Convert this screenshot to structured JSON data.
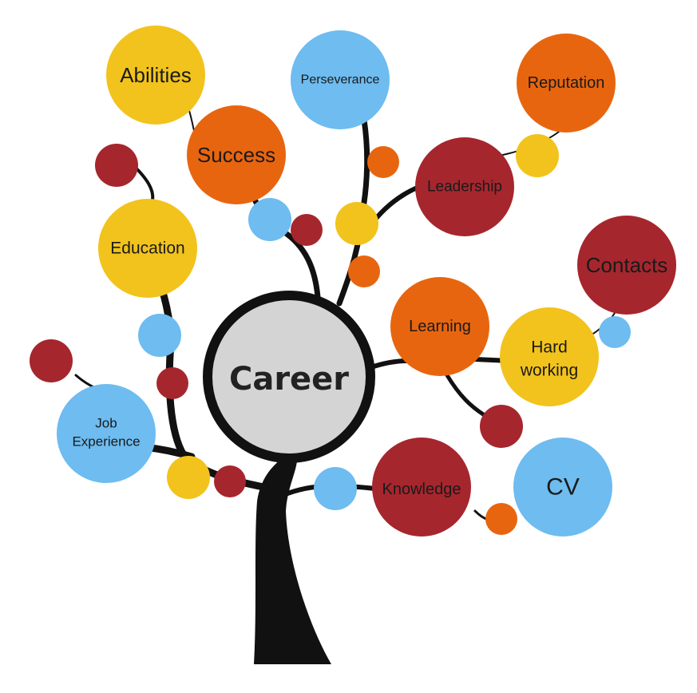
{
  "colors": {
    "yellow": "#f2c31c",
    "orange": "#e8650f",
    "red": "#a6262e",
    "blue": "#6ebcf0",
    "center": "#d4d4d4",
    "trunk": "#111111"
  },
  "center": {
    "label": "Career"
  },
  "nodes": [
    {
      "id": "abilities",
      "label": "Abilities",
      "color": "yellow"
    },
    {
      "id": "success",
      "label": "Success",
      "color": "orange"
    },
    {
      "id": "perseverance",
      "label": "Perseverance",
      "color": "blue"
    },
    {
      "id": "reputation",
      "label": "Reputation",
      "color": "orange"
    },
    {
      "id": "leadership",
      "label": "Leadership",
      "color": "red"
    },
    {
      "id": "education",
      "label": "Education",
      "color": "yellow"
    },
    {
      "id": "contacts",
      "label": "Contacts",
      "color": "red"
    },
    {
      "id": "learning",
      "label": "Learning",
      "color": "orange"
    },
    {
      "id": "hard-working",
      "label": "Hard working",
      "lines": [
        "Hard",
        "working"
      ],
      "color": "yellow"
    },
    {
      "id": "job-experience",
      "label": "Job Experience",
      "lines": [
        "Job",
        "Experience"
      ],
      "color": "blue"
    },
    {
      "id": "knowledge",
      "label": "Knowledge",
      "color": "red"
    },
    {
      "id": "cv",
      "label": "CV",
      "color": "blue"
    }
  ],
  "dots": [
    {
      "color": "red"
    },
    {
      "color": "blue"
    },
    {
      "color": "red"
    },
    {
      "color": "orange"
    },
    {
      "color": "yellow"
    },
    {
      "color": "orange"
    },
    {
      "color": "yellow"
    },
    {
      "color": "blue"
    },
    {
      "color": "red"
    },
    {
      "color": "red"
    },
    {
      "color": "yellow"
    },
    {
      "color": "red"
    },
    {
      "color": "blue"
    },
    {
      "color": "orange"
    },
    {
      "color": "blue"
    },
    {
      "color": "red"
    }
  ]
}
